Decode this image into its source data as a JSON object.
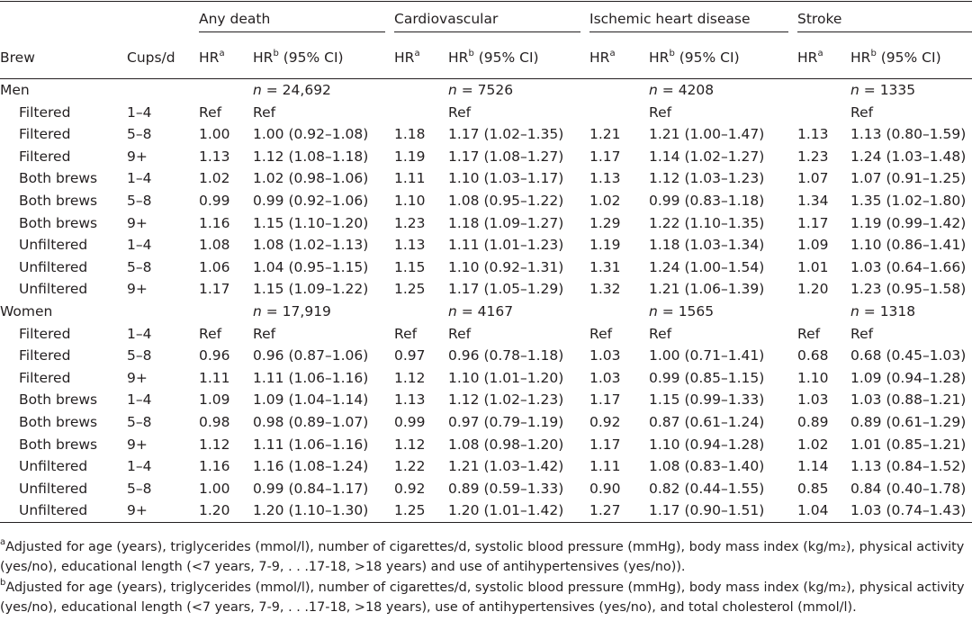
{
  "header": {
    "groups": [
      "Any death",
      "Cardiovascular",
      "Ischemic heart disease",
      "Stroke"
    ],
    "brew": "Brew",
    "cups": "Cups/d",
    "hr": "HR",
    "hr_ci": "(95% CI)",
    "sup_a": "a",
    "sup_b": "b"
  },
  "sections": [
    {
      "label": "Men",
      "n_prefix": "n",
      "n_values": [
        "= 24,692",
        "= 7526",
        "= 4208",
        "= 1335"
      ],
      "rows": [
        {
          "brew": "Filtered",
          "cups": "1–4",
          "cells": [
            "Ref",
            "Ref",
            "",
            "Ref",
            "",
            "Ref",
            "",
            "Ref"
          ]
        },
        {
          "brew": "Filtered",
          "cups": "5–8",
          "cells": [
            "1.00",
            "1.00 (0.92–1.08)",
            "1.18",
            "1.17 (1.02–1.35)",
            "1.21",
            "1.21 (1.00–1.47)",
            "1.13",
            "1.13 (0.80–1.59)"
          ]
        },
        {
          "brew": "Filtered",
          "cups": "9+",
          "cells": [
            "1.13",
            "1.12 (1.08–1.18)",
            "1.19",
            "1.17 (1.08–1.27)",
            "1.17",
            "1.14 (1.02–1.27)",
            "1.23",
            "1.24 (1.03–1.48)"
          ]
        },
        {
          "brew": "Both brews",
          "cups": "1–4",
          "cells": [
            "1.02",
            "1.02 (0.98–1.06)",
            "1.11",
            "1.10 (1.03–1.17)",
            "1.13",
            "1.12 (1.03–1.23)",
            "1.07",
            "1.07 (0.91–1.25)"
          ]
        },
        {
          "brew": "Both brews",
          "cups": "5–8",
          "cells": [
            "0.99",
            "0.99 (0.92–1.06)",
            "1.10",
            "1.08 (0.95–1.22)",
            "1.02",
            "0.99 (0.83–1.18)",
            "1.34",
            "1.35 (1.02–1.80)"
          ]
        },
        {
          "brew": "Both brews",
          "cups": "9+",
          "cells": [
            "1.16",
            "1.15 (1.10–1.20)",
            "1.23",
            "1.18 (1.09–1.27)",
            "1.29",
            "1.22 (1.10–1.35)",
            "1.17",
            "1.19 (0.99–1.42)"
          ]
        },
        {
          "brew": "Unfiltered",
          "cups": "1–4",
          "cells": [
            "1.08",
            "1.08 (1.02–1.13)",
            "1.13",
            "1.11 (1.01–1.23)",
            "1.19",
            "1.18 (1.03–1.34)",
            "1.09",
            "1.10 (0.86–1.41)"
          ]
        },
        {
          "brew": "Unfiltered",
          "cups": "5–8",
          "cells": [
            "1.06",
            "1.04 (0.95–1.15)",
            "1.15",
            "1.10 (0.92–1.31)",
            "1.31",
            "1.24 (1.00–1.54)",
            "1.01",
            "1.03 (0.64–1.66)"
          ]
        },
        {
          "brew": "Unfiltered",
          "cups": "9+",
          "cells": [
            "1.17",
            "1.15 (1.09–1.22)",
            "1.25",
            "1.17 (1.05–1.29)",
            "1.32",
            "1.21 (1.06–1.39)",
            "1.20",
            "1.23 (0.95–1.58)"
          ]
        }
      ]
    },
    {
      "label": "Women",
      "n_prefix": "n",
      "n_values": [
        "= 17,919",
        "= 4167",
        "= 1565",
        "= 1318"
      ],
      "rows": [
        {
          "brew": "Filtered",
          "cups": "1–4",
          "cells": [
            "Ref",
            "Ref",
            "Ref",
            "Ref",
            "Ref",
            "Ref",
            "Ref",
            "Ref"
          ]
        },
        {
          "brew": "Filtered",
          "cups": "5–8",
          "cells": [
            "0.96",
            "0.96 (0.87–1.06)",
            "0.97",
            "0.96 (0.78–1.18)",
            "1.03",
            "1.00 (0.71–1.41)",
            "0.68",
            "0.68 (0.45–1.03)"
          ]
        },
        {
          "brew": "Filtered",
          "cups": "9+",
          "cells": [
            "1.11",
            "1.11 (1.06–1.16)",
            "1.12",
            "1.10 (1.01–1.20)",
            "1.03",
            "0.99 (0.85–1.15)",
            "1.10",
            "1.09 (0.94–1.28)"
          ]
        },
        {
          "brew": "Both brews",
          "cups": "1–4",
          "cells": [
            "1.09",
            "1.09 (1.04–1.14)",
            "1.13",
            "1.12 (1.02–1.23)",
            "1.17",
            "1.15 (0.99–1.33)",
            "1.03",
            "1.03 (0.88–1.21)"
          ]
        },
        {
          "brew": "Both brews",
          "cups": "5–8",
          "cells": [
            "0.98",
            "0.98 (0.89–1.07)",
            "0.99",
            "0.97 (0.79–1.19)",
            "0.92",
            "0.87 (0.61–1.24)",
            "0.89",
            "0.89 (0.61–1.29)"
          ]
        },
        {
          "brew": "Both brews",
          "cups": "9+",
          "cells": [
            "1.12",
            "1.11 (1.06–1.16)",
            "1.12",
            "1.08 (0.98–1.20)",
            "1.17",
            "1.10 (0.94–1.28)",
            "1.02",
            "1.01 (0.85–1.21)"
          ]
        },
        {
          "brew": "Unfiltered",
          "cups": "1–4",
          "cells": [
            "1.16",
            "1.16 (1.08–1.24)",
            "1.22",
            "1.21 (1.03–1.42)",
            "1.11",
            "1.08 (0.83–1.40)",
            "1.14",
            "1.13 (0.84–1.52)"
          ]
        },
        {
          "brew": "Unfiltered",
          "cups": "5–8",
          "cells": [
            "1.00",
            "0.99 (0.84–1.17)",
            "0.92",
            "0.89 (0.59–1.33)",
            "0.90",
            "0.82 (0.44–1.55)",
            "0.85",
            "0.84 (0.40–1.78)"
          ]
        },
        {
          "brew": "Unfiltered",
          "cups": "9+",
          "cells": [
            "1.20",
            "1.20 (1.10–1.30)",
            "1.25",
            "1.20 (1.01–1.42)",
            "1.27",
            "1.17 (0.90–1.51)",
            "1.04",
            "1.03 (0.74–1.43)"
          ]
        }
      ]
    }
  ],
  "footnotes": [
    {
      "mark": "a",
      "text": "Adjusted for age (years), triglycerides (mmol/l), number of cigarettes/d, systolic blood pressure (mmHg), body mass index (kg/m₂), physical activity (yes/no), educational length (<7 years, 7-9, . . .17-18, >18 years) and use of antihypertensives (yes/no))."
    },
    {
      "mark": "b",
      "text": "Adjusted for age (years), triglycerides (mmol/l), number of cigarettes/d, systolic blood pressure (mmHg), body mass index (kg/m₂), physical activity (yes/no), educational length (<7 years, 7-9, . . .17-18, >18 years), use of antihypertensives (yes/no), and total cholesterol (mmol/l)."
    }
  ]
}
